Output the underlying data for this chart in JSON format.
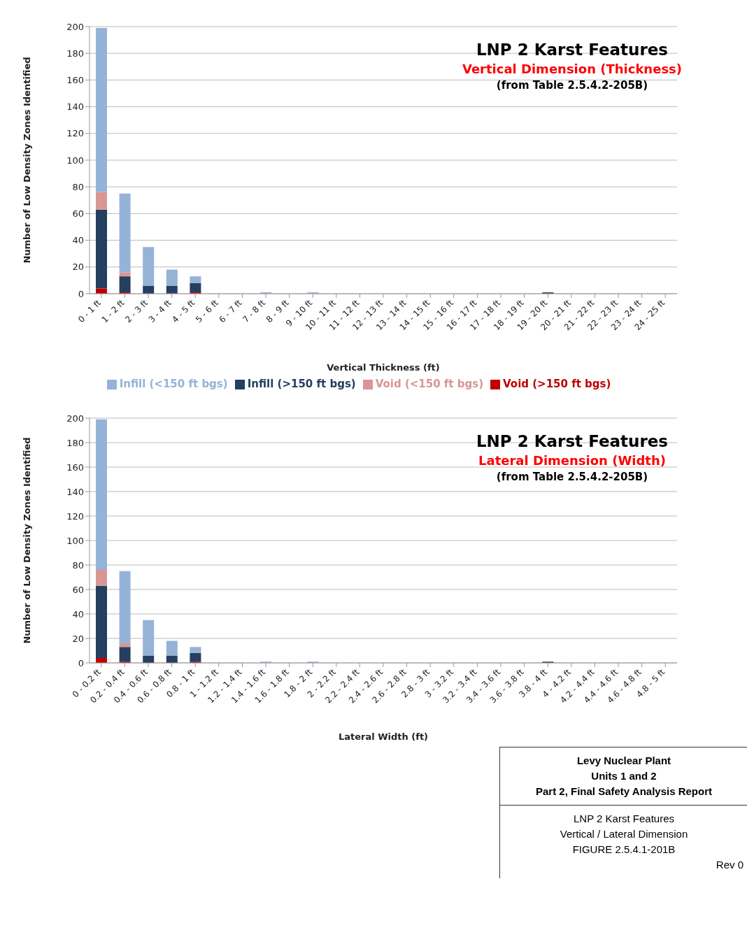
{
  "chart_data": [
    {
      "type": "bar",
      "title": "LNP 2 Karst Features",
      "subtitle": "Vertical  Dimension (Thickness)",
      "annotations": [
        "(from Table 2.5.4.2-205B)"
      ],
      "xlabel": "Vertical Thickness (ft)",
      "ylabel": "Number of Low Density Zones Identified",
      "categories": [
        "0 - 1 ft",
        "1 - 2 ft",
        "2 - 3 ft",
        "3 - 4 ft",
        "4 - 5 ft",
        "5 - 6 ft",
        "6 - 7 ft",
        "7 - 8 ft",
        "8 - 9 ft",
        "9 - 10 ft",
        "10 - 11 ft",
        "11 - 12 ft",
        "12 - 13 ft",
        "13 - 14 ft",
        "14 - 15 ft",
        "15 - 16 ft",
        "16 - 17 ft",
        "17 - 18 ft",
        "18 - 19 ft",
        "19 - 20 ft",
        "20 - 21 ft",
        "21 - 22 ft",
        "22 - 23 ft",
        "23 - 24 ft",
        "24 - 25 ft"
      ],
      "series": [
        {
          "name": "Void (>150 ft bgs)",
          "color": "#c00000",
          "values": [
            4,
            1,
            0,
            0,
            1,
            0,
            0,
            0,
            0,
            0,
            0,
            0,
            0,
            0,
            0,
            0,
            0,
            0,
            0,
            0,
            0,
            0,
            0,
            0,
            0
          ]
        },
        {
          "name": "Infill (>150 ft bgs)",
          "color": "#243f60",
          "values": [
            59,
            12,
            6,
            6,
            7,
            0,
            0,
            0,
            0,
            0,
            0,
            0,
            0,
            0,
            0,
            0,
            0,
            0,
            0,
            1,
            0,
            0,
            0,
            0,
            0
          ]
        },
        {
          "name": "Void (<150 ft bgs)",
          "color": "#d99694",
          "values": [
            13,
            3,
            0,
            0,
            0,
            0,
            0,
            0,
            0,
            0,
            0,
            0,
            0,
            0,
            0,
            0,
            0,
            0,
            0,
            0,
            0,
            0,
            0,
            0,
            0
          ]
        },
        {
          "name": "Infill (<150 ft bgs)",
          "color": "#95b3d7",
          "values": [
            123,
            59,
            29,
            12,
            5,
            0,
            0,
            1,
            0,
            1,
            0,
            0,
            0,
            0,
            0,
            0,
            0,
            0,
            0,
            0,
            0,
            0,
            0,
            0,
            0
          ]
        }
      ],
      "stacked": true,
      "ylim": [
        0,
        200
      ],
      "yticks": [
        0,
        20,
        40,
        60,
        80,
        100,
        120,
        140,
        160,
        180,
        200
      ],
      "grid": "y",
      "legend": "bottom"
    },
    {
      "type": "bar",
      "title": "LNP 2 Karst Features",
      "subtitle": "Lateral Dimension (Width)",
      "annotations": [
        "(from Table 2.5.4.2-205B)",
        "Levy Nuclear Plant",
        "Units 1 and 2",
        "Part 2, Final Safety Analysis Report",
        "LNP 2 Karst Features",
        "Vertical / Lateral Dimension",
        "FIGURE 2.5.4.1-201B",
        "Rev 0"
      ],
      "xlabel": "Lateral Width (ft)",
      "ylabel": "Number of Low Density Zones Identified",
      "categories": [
        "0 - 0.2 ft",
        "0.2 - 0.4 ft",
        "0.4 - 0.6 ft",
        "0.6 - 0.8 ft",
        "0.8 - 1 ft",
        "1 - 1.2 ft",
        "1.2 - 1.4 ft",
        "1.4 - 1.6 ft",
        "1.6 - 1.8 ft",
        "1.8 - 2 ft",
        "2 - 2.2 ft",
        "2.2 - 2.4 ft",
        "2.4 - 2.6 ft",
        "2.6 - 2.8 ft",
        "2.8 - 3 ft",
        "3 - 3.2 ft",
        "3.2 - 3.4 ft",
        "3.4 - 3.6 ft",
        "3.6 - 3.8 ft",
        "3.8 - 4 ft",
        "4 - 4.2 ft",
        "4.2 - 4.4 ft",
        "4.4 - 4.6 ft",
        "4.6 - 4.8 ft",
        "4.8 - 5 ft"
      ],
      "series": [
        {
          "color": "#c00000",
          "values": [
            4,
            1,
            0,
            0,
            1,
            0,
            0,
            0,
            0,
            0,
            0,
            0,
            0,
            0,
            0,
            0,
            0,
            0,
            0,
            0,
            0,
            0,
            0,
            0,
            0
          ]
        },
        {
          "color": "#243f60",
          "values": [
            59,
            12,
            6,
            6,
            7,
            0,
            0,
            0,
            0,
            0,
            0,
            0,
            0,
            0,
            0,
            0,
            0,
            0,
            0,
            1,
            0,
            0,
            0,
            0,
            0
          ]
        },
        {
          "color": "#d99694",
          "values": [
            13,
            3,
            0,
            0,
            0,
            0,
            0,
            0,
            0,
            0,
            0,
            0,
            0,
            0,
            0,
            0,
            0,
            0,
            0,
            0,
            0,
            0,
            0,
            0,
            0
          ]
        },
        {
          "color": "#95b3d7",
          "values": [
            123,
            59,
            29,
            12,
            5,
            0,
            0,
            1,
            0,
            1,
            0,
            0,
            0,
            0,
            0,
            0,
            0,
            0,
            0,
            0,
            0,
            0,
            0,
            0,
            0
          ]
        }
      ],
      "stacked": true,
      "ylim": [
        0,
        200
      ],
      "yticks": [
        0,
        20,
        40,
        60,
        80,
        100,
        120,
        140,
        160,
        180,
        200
      ],
      "grid": "y"
    }
  ]
}
